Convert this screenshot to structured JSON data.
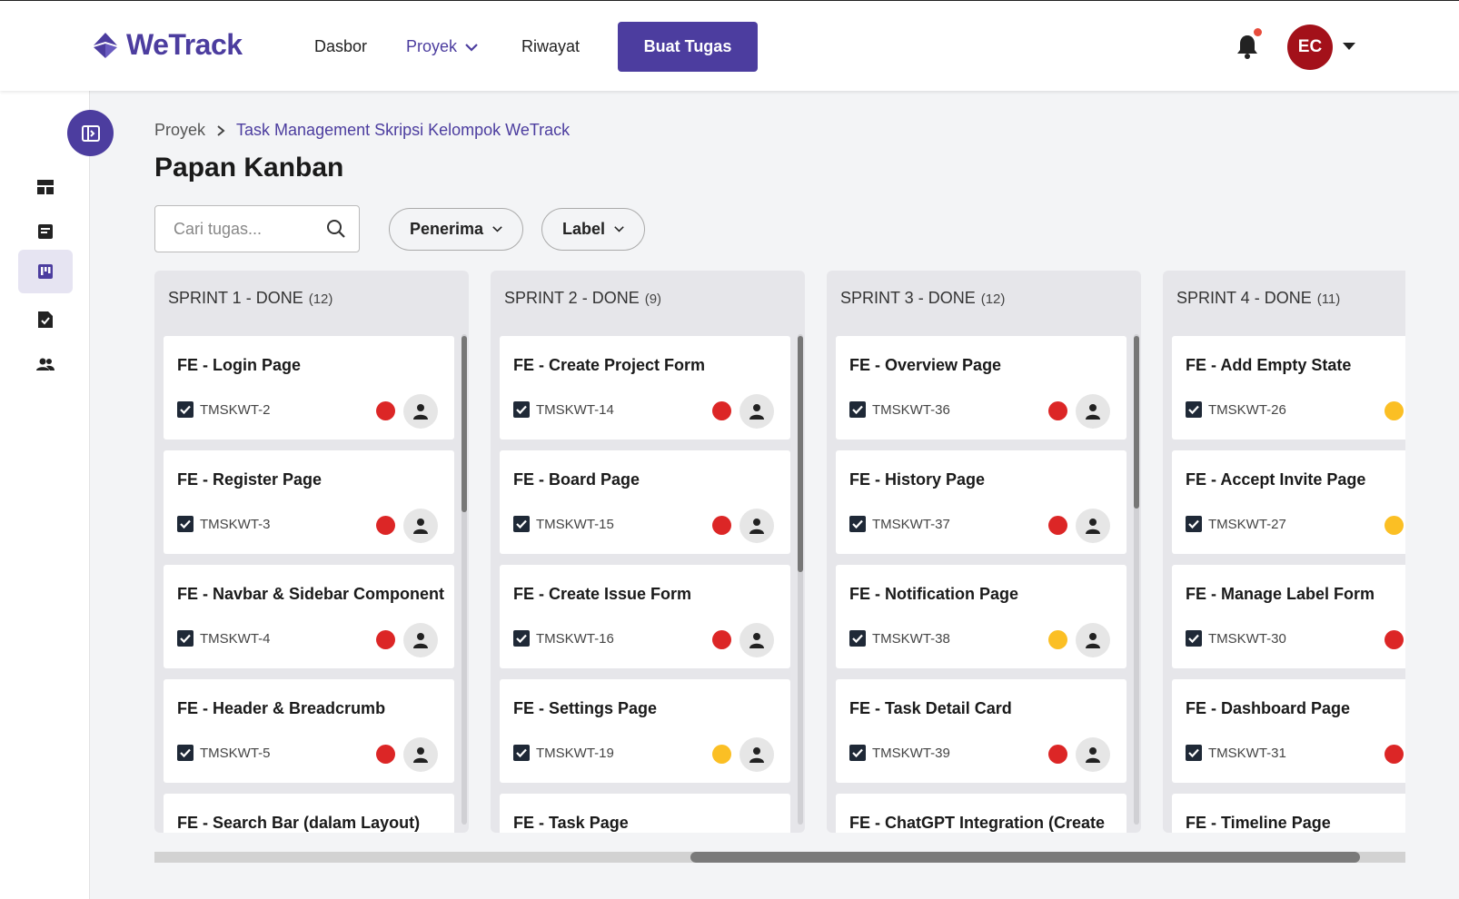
{
  "app": {
    "name": "WeTrack"
  },
  "nav": {
    "dashboard": "Dasbor",
    "project": "Proyek",
    "history": "Riwayat",
    "create_task": "Buat Tugas"
  },
  "user": {
    "initials": "EC"
  },
  "breadcrumb": {
    "root": "Proyek",
    "current": "Task Management Skripsi Kelompok WeTrack"
  },
  "page": {
    "title": "Papan Kanban"
  },
  "search": {
    "placeholder": "Cari tugas..."
  },
  "filters": {
    "assignee": "Penerima",
    "label": "Label"
  },
  "colors": {
    "brand": "#4c3d9f",
    "priority_high": "#dc2626",
    "priority_medium": "#fbbf24",
    "avatar_bg": "#a3111a"
  },
  "columns": [
    {
      "title": "SPRINT 1 - DONE",
      "count": "(12)",
      "cards": [
        {
          "title": "FE - Login Page",
          "key": "TMSKWT-2",
          "priority": "high"
        },
        {
          "title": "FE - Register Page",
          "key": "TMSKWT-3",
          "priority": "high"
        },
        {
          "title": "FE - Navbar & Sidebar Component",
          "key": "TMSKWT-4",
          "priority": "high"
        },
        {
          "title": "FE - Header & Breadcrumb",
          "key": "TMSKWT-5",
          "priority": "high"
        },
        {
          "title": "FE - Search Bar (dalam Layout)",
          "key": "",
          "priority": ""
        }
      ]
    },
    {
      "title": "SPRINT 2 - DONE",
      "count": "(9)",
      "cards": [
        {
          "title": "FE - Create Project Form",
          "key": "TMSKWT-14",
          "priority": "high"
        },
        {
          "title": "FE - Board Page",
          "key": "TMSKWT-15",
          "priority": "high"
        },
        {
          "title": "FE - Create Issue Form",
          "key": "TMSKWT-16",
          "priority": "high"
        },
        {
          "title": "FE - Settings Page",
          "key": "TMSKWT-19",
          "priority": "medium"
        },
        {
          "title": "FE - Task Page",
          "key": "",
          "priority": ""
        }
      ]
    },
    {
      "title": "SPRINT 3 - DONE",
      "count": "(12)",
      "cards": [
        {
          "title": "FE - Overview Page",
          "key": "TMSKWT-36",
          "priority": "high"
        },
        {
          "title": "FE - History Page",
          "key": "TMSKWT-37",
          "priority": "high"
        },
        {
          "title": "FE - Notification Page",
          "key": "TMSKWT-38",
          "priority": "medium"
        },
        {
          "title": "FE - Task Detail Card",
          "key": "TMSKWT-39",
          "priority": "high"
        },
        {
          "title": "FE - ChatGPT Integration (Create",
          "key": "",
          "priority": ""
        }
      ]
    },
    {
      "title": "SPRINT 4 - DONE",
      "count": "(11)",
      "cards": [
        {
          "title": "FE - Add Empty State",
          "key": "TMSKWT-26",
          "priority": "medium"
        },
        {
          "title": "FE - Accept Invite Page",
          "key": "TMSKWT-27",
          "priority": "medium"
        },
        {
          "title": "FE - Manage Label Form",
          "key": "TMSKWT-30",
          "priority": "high"
        },
        {
          "title": "FE - Dashboard Page",
          "key": "TMSKWT-31",
          "priority": "high"
        },
        {
          "title": "FE - Timeline Page",
          "key": "",
          "priority": ""
        }
      ]
    }
  ]
}
